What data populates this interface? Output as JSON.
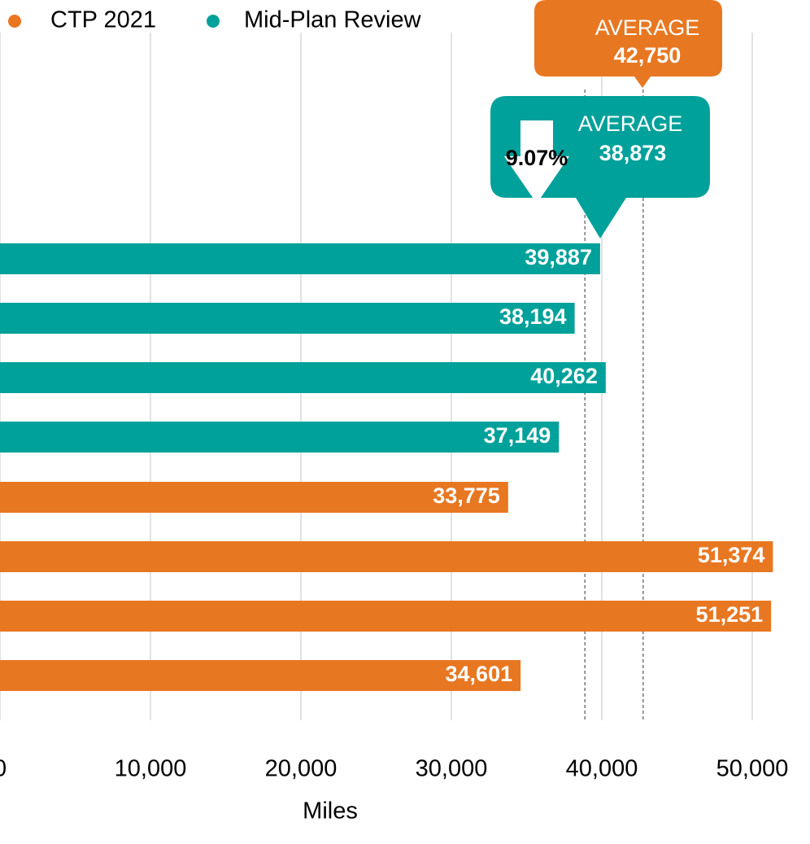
{
  "chart_data": {
    "type": "barh",
    "categories": [
      null,
      null,
      null,
      null,
      null,
      null,
      null,
      null
    ],
    "series": [
      {
        "name": "CTP 2021",
        "color": "#e87722",
        "values": [
          null,
          null,
          null,
          null,
          33775,
          51374,
          51251,
          34601
        ],
        "value_labels": [
          null,
          null,
          null,
          null,
          "33,775",
          "51,374",
          "51,251",
          "34,601"
        ]
      },
      {
        "name": "Mid-Plan Review",
        "color": "#00a19a",
        "values": [
          39887,
          38194,
          40262,
          37149,
          null,
          null,
          null,
          null
        ],
        "value_labels": [
          "39,887",
          "38,194",
          "40,262",
          "37,149",
          null,
          null,
          null,
          null
        ]
      }
    ],
    "averages": {
      "label": "AVERAGE",
      "values": [
        42750,
        38873
      ],
      "value_labels": [
        "42,750",
        "38,873"
      ],
      "colors": [
        "#e87722",
        "#00a19a"
      ]
    },
    "change_label": "9.07%",
    "xlabel": "Miles",
    "xlim": [
      0,
      50000
    ],
    "xticks": [
      0,
      {
        "value": 10000,
        "label": "10,000"
      },
      {
        "value": 20000,
        "label": "20,000"
      },
      {
        "value": 30000,
        "label": "30,000"
      },
      {
        "value": 40000,
        "label": "40,000"
      },
      {
        "value": 50000,
        "label": "50,000"
      }
    ],
    "grid": true
  }
}
